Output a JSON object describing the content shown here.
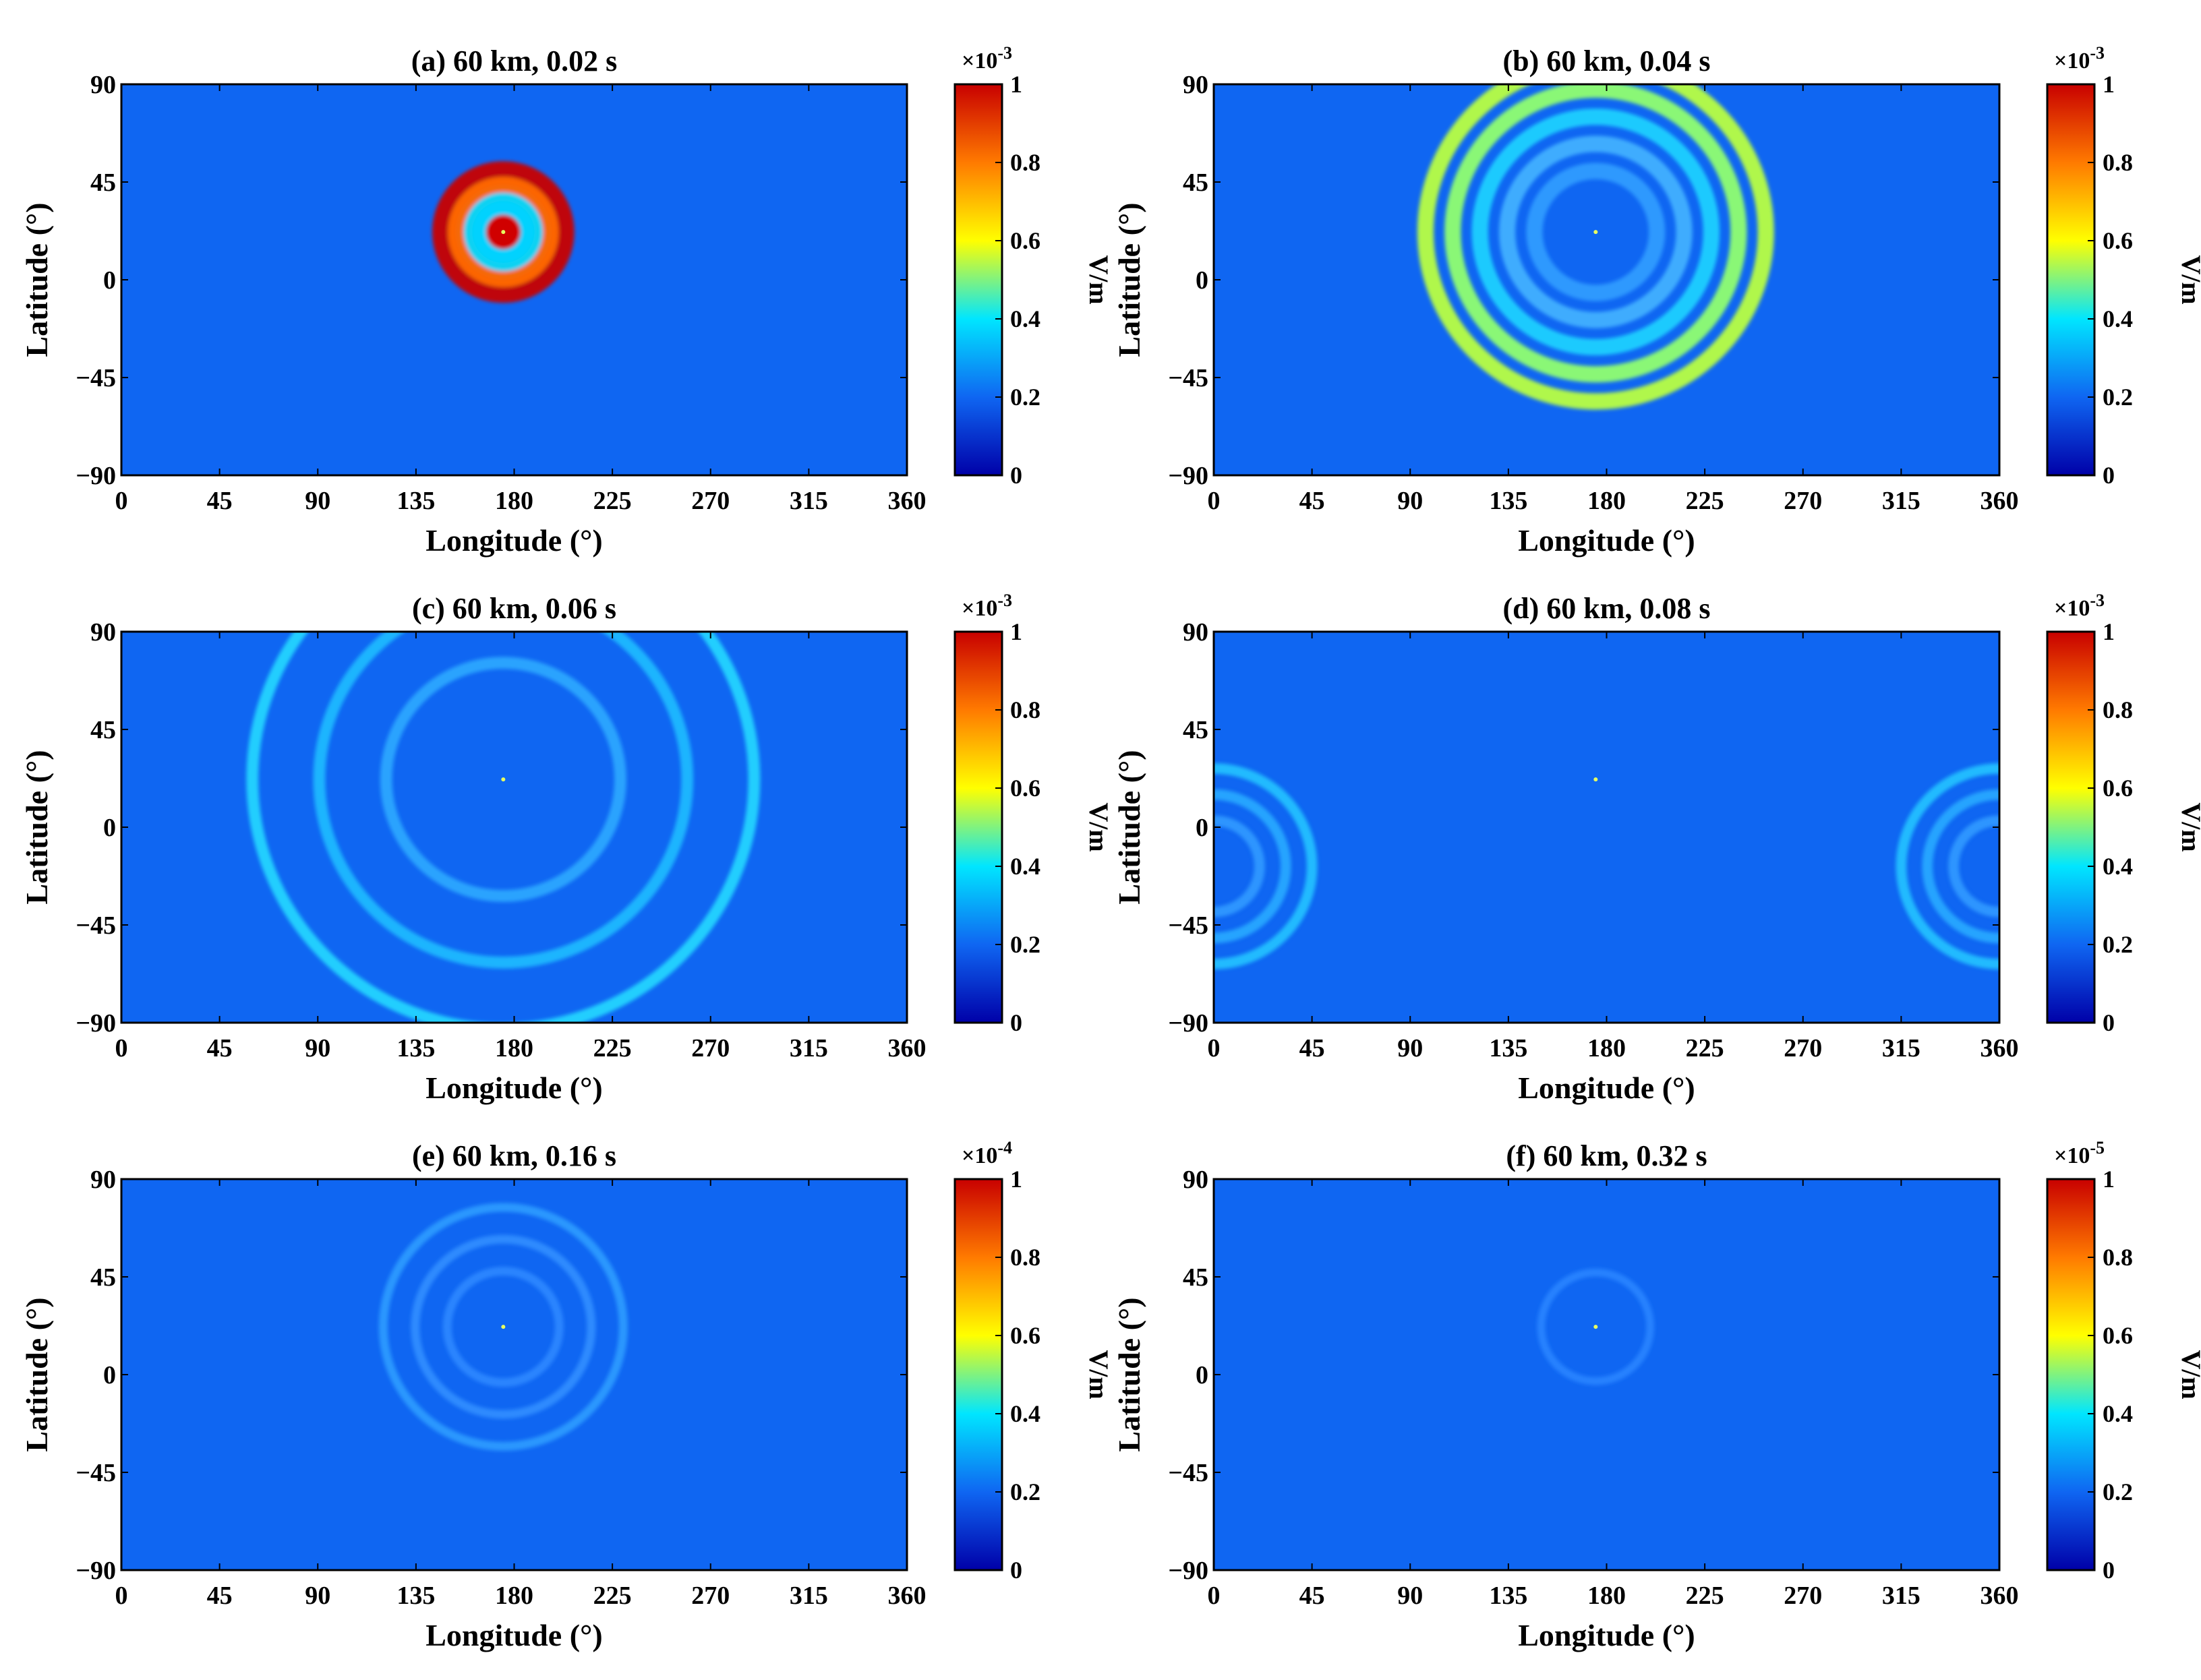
{
  "figure": {
    "panels": [
      {
        "id": "a",
        "title": "(a) 60 km, 0.02 s",
        "cb_label": "V/m",
        "cb_exp": "-3",
        "sources": [
          {
            "lon": 175,
            "lat": 22,
            "rings": 3,
            "radius": 27,
            "amp": 1.0
          }
        ]
      },
      {
        "id": "b",
        "title": "(b) 60 km, 0.04 s",
        "cb_label": "V/m",
        "cb_exp": "-3",
        "sources": [
          {
            "lon": 175,
            "lat": 22,
            "rings": 5,
            "radius": 78,
            "amp": 0.55
          }
        ]
      },
      {
        "id": "c",
        "title": "(c) 60 km, 0.06 s",
        "cb_label": "V/m",
        "cb_exp": "-3",
        "sources": [
          {
            "lon": 175,
            "lat": 22,
            "rings": 3,
            "radius": 115,
            "amp": 0.3
          }
        ]
      },
      {
        "id": "d",
        "title": "(d) 60 km, 0.08 s",
        "cb_label": "V/m",
        "cb_exp": "-3",
        "sources": [
          {
            "lon": 0,
            "lat": -18,
            "rings": 3,
            "radius": 45,
            "amp": 0.22
          },
          {
            "lon": 360,
            "lat": -18,
            "rings": 3,
            "radius": 45,
            "amp": 0.22
          }
        ]
      },
      {
        "id": "e",
        "title": "(e) 60 km, 0.16 s",
        "cb_label": "V/m",
        "cb_exp": "-4",
        "sources": [
          {
            "lon": 175,
            "lat": 22,
            "rings": 3,
            "radius": 55,
            "amp": 0.12
          }
        ]
      },
      {
        "id": "f",
        "title": "(f) 60 km, 0.32 s",
        "cb_label": "V/m",
        "cb_exp": "-5",
        "sources": [
          {
            "lon": 175,
            "lat": 22,
            "rings": 1,
            "radius": 25,
            "amp": 0.07
          }
        ]
      }
    ],
    "colors": {
      "background": "#0f66f2",
      "scale": [
        "#0000a8",
        "#0f66f2",
        "#00e6ff",
        "#ffff00",
        "#ff7a00",
        "#c80000"
      ]
    }
  },
  "chart_data": {
    "type": "heatmap",
    "xlabel": "Longitude (°)",
    "ylabel": "Latitude (°)",
    "x_ticks": [
      "0",
      "45",
      "90",
      "135",
      "180",
      "225",
      "270",
      "315",
      "360"
    ],
    "y_ticks": [
      "90",
      "45",
      "0",
      "−45",
      "−90"
    ],
    "xlim": [
      0,
      360
    ],
    "ylim": [
      -90,
      90
    ],
    "colorbar": {
      "ticks": [
        "1",
        "0.8",
        "0.6",
        "0.4",
        "0.2",
        "0"
      ],
      "range": [
        0,
        1
      ],
      "multiplier_base": "×10"
    },
    "source_location": {
      "lon": 175,
      "lat": 22
    }
  }
}
